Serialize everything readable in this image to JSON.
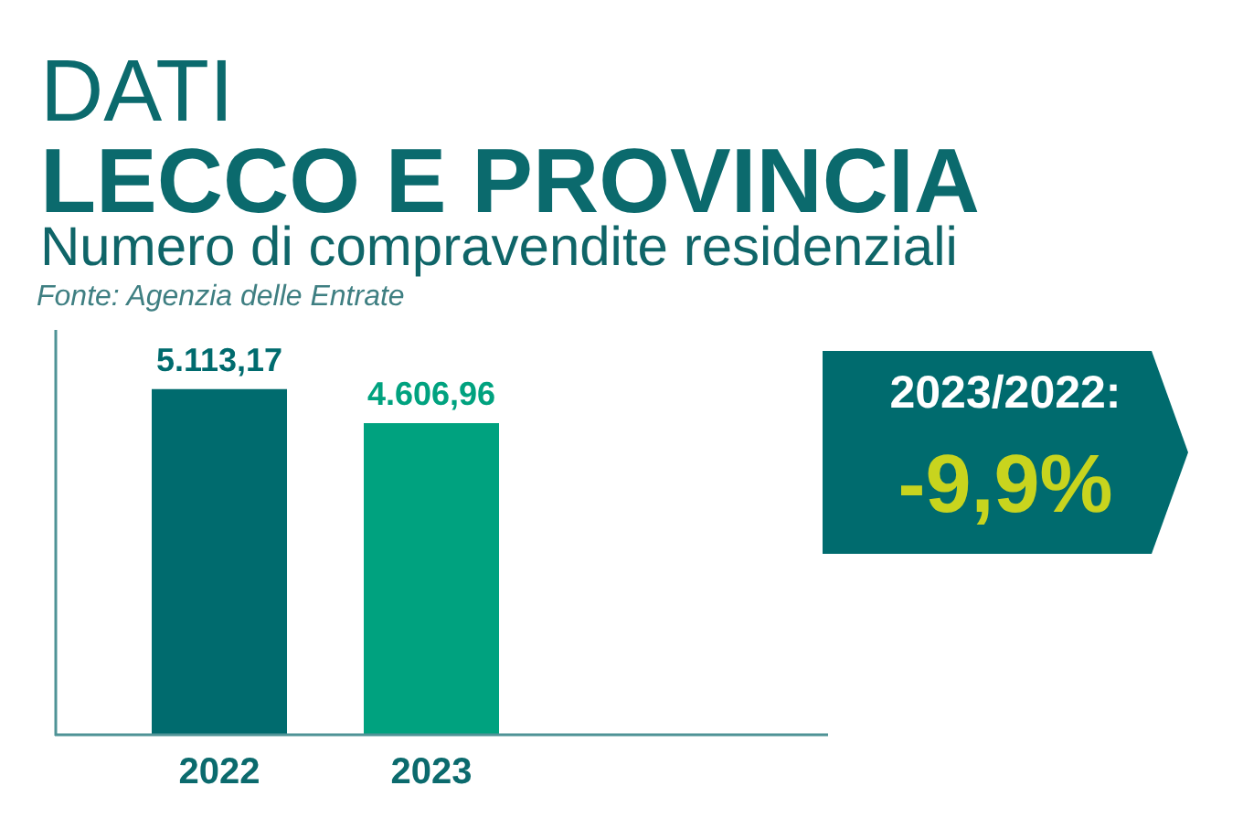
{
  "chart_data": {
    "type": "bar",
    "title": "DATI\nLECCO E PROVINCIA",
    "subtitle": "Numero di compravendite residenziali",
    "annotations": [
      "Fonte: Agenzia delle Entrate",
      "2023/2022:",
      "-9,9%"
    ],
    "categories": [
      "2022",
      "2023"
    ],
    "values": [
      5113.17,
      4606.96
    ],
    "colors": [
      "#006b6e",
      "#00a27f"
    ],
    "value_labels": [
      "5.113,17",
      "4.606,96"
    ],
    "tick_labels": "x",
    "grid": false
  }
}
